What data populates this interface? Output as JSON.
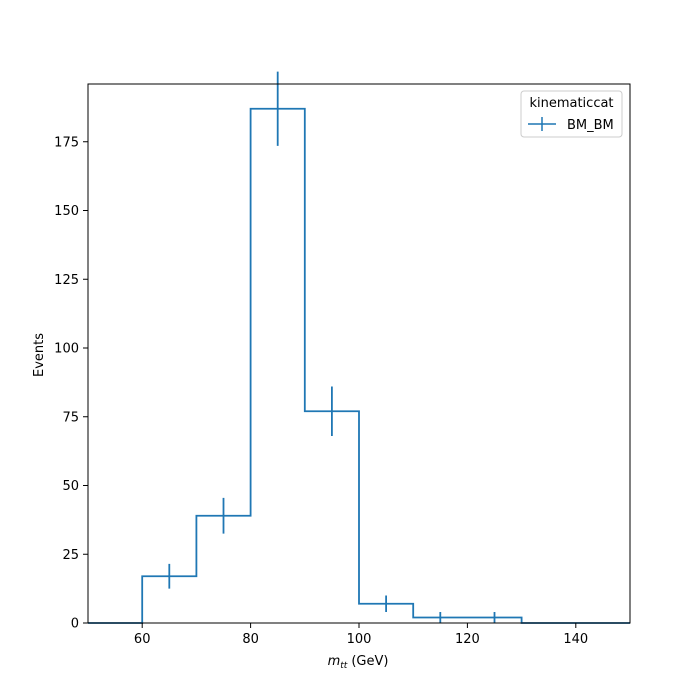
{
  "chart_data": {
    "type": "histogram",
    "title": "",
    "xlabel_main": "m",
    "xlabel_sub": "tt",
    "xlabel_unit": "(GeV)",
    "ylabel": "Events",
    "xlim": [
      50,
      150
    ],
    "ylim": [
      0,
      196
    ],
    "xticks": [
      60,
      80,
      100,
      120,
      140
    ],
    "yticks": [
      0,
      25,
      50,
      75,
      100,
      125,
      150,
      175
    ],
    "grid": false,
    "legend": {
      "title": "kinematiccat",
      "placement": "top-right"
    },
    "series": [
      {
        "name": "BM_BM",
        "color": "#1f77b4",
        "bin_edges": [
          50,
          60,
          70,
          80,
          90,
          100,
          110,
          120,
          130,
          140,
          150
        ],
        "values": [
          0,
          17,
          39,
          187,
          77,
          7,
          2,
          2,
          0,
          0
        ],
        "errors": [
          0,
          4.5,
          6.5,
          13.5,
          9,
          3,
          2,
          2,
          0,
          0
        ]
      }
    ]
  }
}
